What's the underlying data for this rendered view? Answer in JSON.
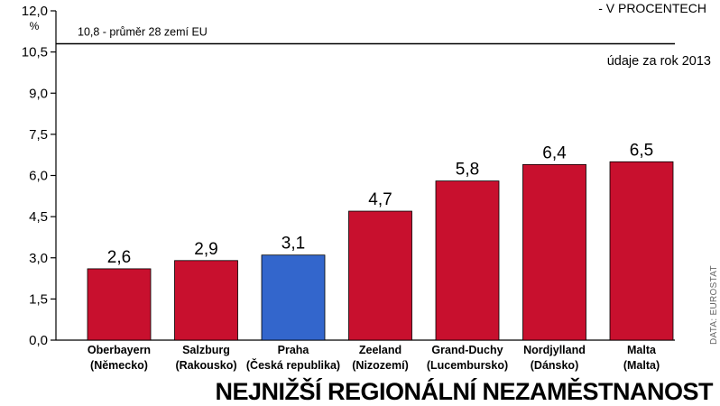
{
  "chart_data": {
    "type": "bar",
    "title": "NEJNIŽŠÍ REGIONÁLNÍ NEZAMĚSTNANOST",
    "unit_title": "- V PROCENTECH",
    "y_unit": "%",
    "note": "údaje za rok 2013",
    "source": "DATA: EUROSTAT",
    "ylim": [
      0,
      12
    ],
    "yticks": [
      "0,0",
      "1,5",
      "3,0",
      "4,5",
      "6,0",
      "7,5",
      "9,0",
      "10,5",
      "12,0"
    ],
    "ytick_values": [
      0,
      1.5,
      3,
      4.5,
      6,
      7.5,
      9,
      10.5,
      12
    ],
    "grid": false,
    "reference_line": {
      "value": 10.8,
      "label": "10,8 - průměr 28 zemí EU"
    },
    "categories": [
      {
        "name": "Oberbayern",
        "country": "(Německo)"
      },
      {
        "name": "Salzburg",
        "country": "(Rakousko)"
      },
      {
        "name": "Praha",
        "country": "(Česká republika)"
      },
      {
        "name": "Zeeland",
        "country": "(Nizozemí)"
      },
      {
        "name": "Grand-Duchy",
        "country": "(Lucembursko)"
      },
      {
        "name": "Nordjylland",
        "country": "(Dánsko)"
      },
      {
        "name": "Malta",
        "country": "(Malta)"
      }
    ],
    "values": [
      2.6,
      2.9,
      3.1,
      4.7,
      5.8,
      6.4,
      6.5
    ],
    "value_labels": [
      "2,6",
      "2,9",
      "3,1",
      "4,7",
      "5,8",
      "6,4",
      "6,5"
    ],
    "colors": [
      "#c8102e",
      "#c8102e",
      "#3366cc",
      "#c8102e",
      "#c8102e",
      "#c8102e",
      "#c8102e"
    ]
  }
}
